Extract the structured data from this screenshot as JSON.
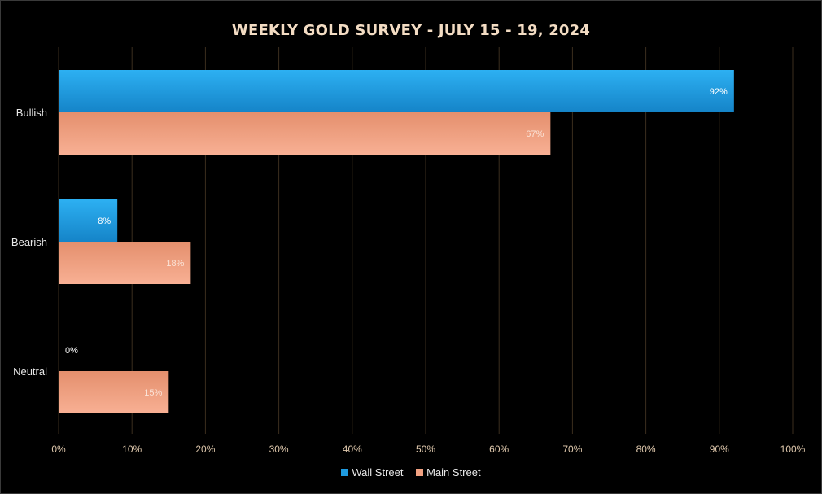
{
  "chart_data": {
    "type": "bar",
    "orientation": "horizontal",
    "title": "WEEKLY GOLD SURVEY - JULY 15 - 19, 2024",
    "categories": [
      "Bullish",
      "Bearish",
      "Neutral"
    ],
    "series": [
      {
        "name": "Wall Street",
        "values": [
          92,
          8,
          0
        ],
        "labels": [
          "92%",
          "8%",
          "0%"
        ],
        "color": "#1f9be0"
      },
      {
        "name": "Main Street",
        "values": [
          67,
          18,
          15
        ],
        "labels": [
          "67%",
          "18%",
          "15%"
        ],
        "color": "#f2a282"
      }
    ],
    "xticks": [
      "0%",
      "10%",
      "20%",
      "30%",
      "40%",
      "50%",
      "60%",
      "70%",
      "80%",
      "90%",
      "100%"
    ],
    "xlim": [
      0,
      100
    ],
    "grid": true,
    "legend": "bottom"
  },
  "colors": {
    "background": "#000000",
    "title": "#f3dcc3",
    "gridline": "#3b2e1e",
    "tick": "#e0c9ad"
  }
}
